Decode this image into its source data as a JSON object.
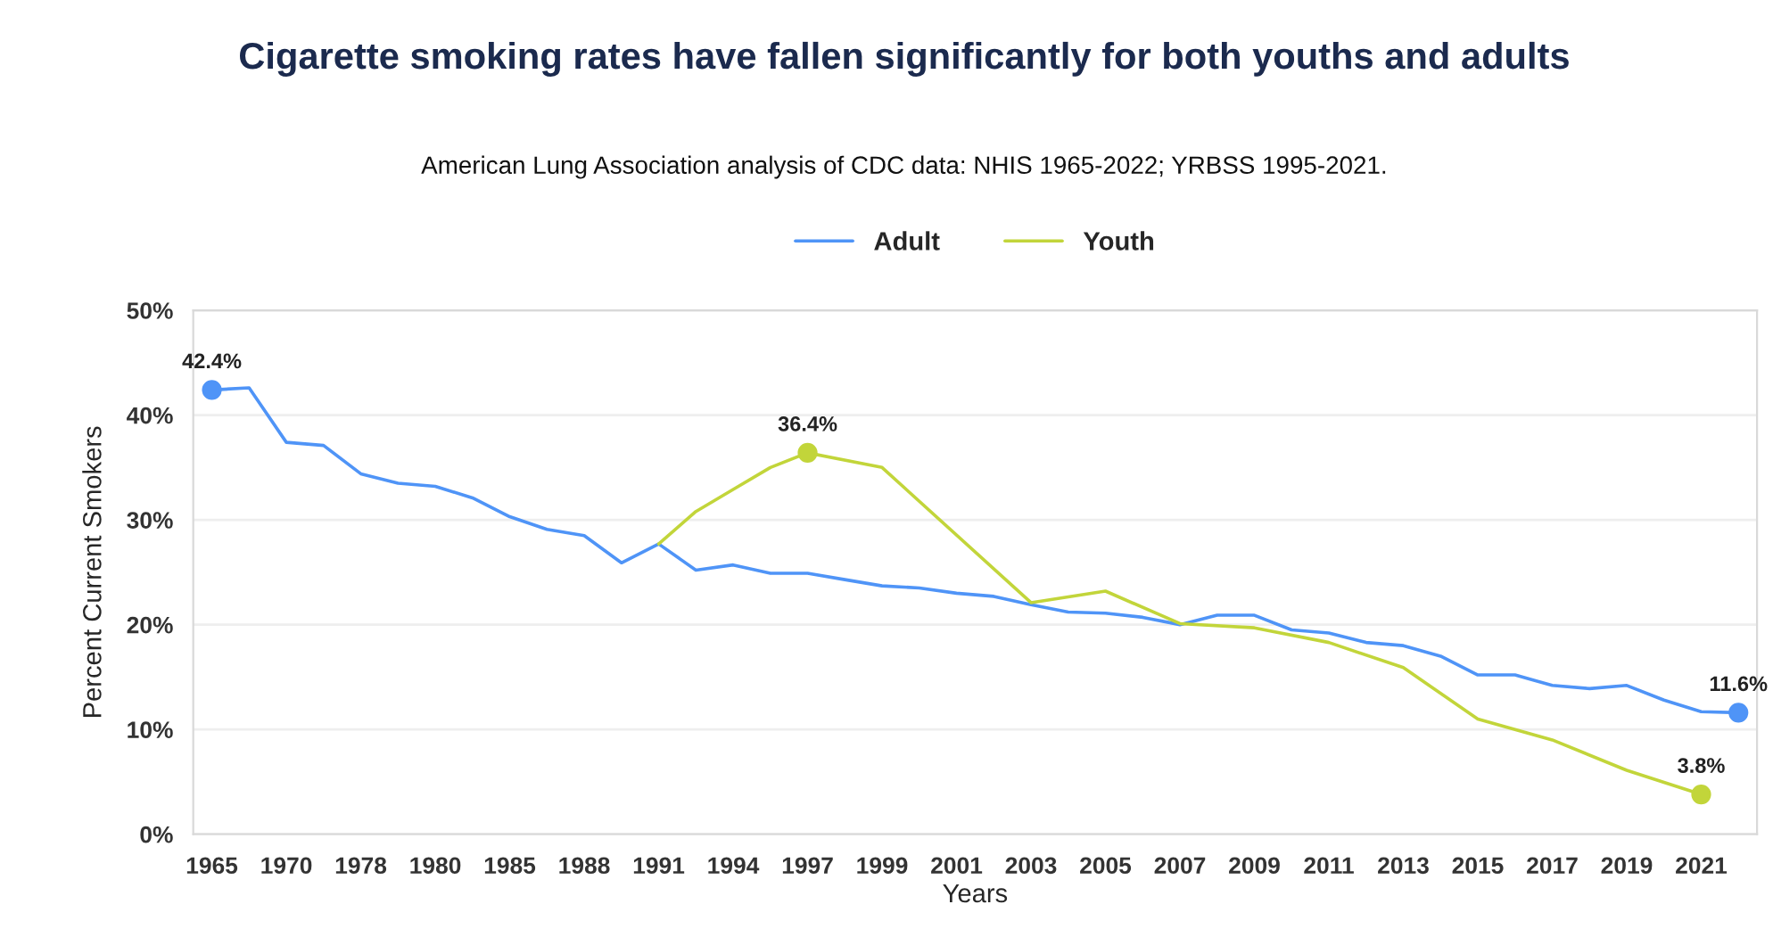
{
  "chart_data": {
    "type": "line",
    "title": "Cigarette smoking rates have fallen significantly for both youths and adults",
    "subtitle": "American Lung Association analysis of CDC data: NHIS 1965-2022; YRBSS 1995-2021.",
    "xlabel": "Years",
    "ylabel": "Percent Current Smokers",
    "categories": [
      "1965",
      null,
      "1970",
      null,
      "1978",
      null,
      "1980",
      null,
      "1985",
      null,
      "1988",
      null,
      "1991",
      null,
      "1994",
      null,
      "1997",
      null,
      "1999",
      null,
      "2001",
      null,
      "2003",
      null,
      "2005",
      null,
      "2007",
      null,
      "2009",
      null,
      "2011",
      null,
      "2013",
      null,
      "2015",
      null,
      "2017",
      null,
      "2019",
      null,
      "2021",
      null
    ],
    "ylim": [
      0,
      50
    ],
    "yticks": [
      {
        "value": 0,
        "label": "0%"
      },
      {
        "value": 10,
        "label": "10%"
      },
      {
        "value": 20,
        "label": "20%"
      },
      {
        "value": 30,
        "label": "30%"
      },
      {
        "value": 40,
        "label": "40%"
      },
      {
        "value": 50,
        "label": "50%"
      }
    ],
    "grid": "y",
    "legend": "top",
    "series": [
      {
        "name": "Adult",
        "color": "#4f94f7",
        "values": [
          42.4,
          42.6,
          37.4,
          37.1,
          34.4,
          33.5,
          33.2,
          32.1,
          30.3,
          29.1,
          28.5,
          25.9,
          27.7,
          25.2,
          25.7,
          24.9,
          24.9,
          24.3,
          23.7,
          23.5,
          23.0,
          22.7,
          21.9,
          21.2,
          21.1,
          20.7,
          20.0,
          20.9,
          20.9,
          19.5,
          19.2,
          18.3,
          18.0,
          17.0,
          15.2,
          15.2,
          14.2,
          13.9,
          14.2,
          12.8,
          11.7,
          11.6
        ],
        "value_labels": [
          "42.4%",
          null,
          null,
          null,
          null,
          null,
          null,
          null,
          null,
          null,
          null,
          null,
          null,
          null,
          null,
          null,
          null,
          null,
          null,
          null,
          null,
          null,
          null,
          null,
          null,
          null,
          null,
          null,
          null,
          null,
          null,
          null,
          null,
          null,
          null,
          null,
          null,
          null,
          null,
          null,
          null,
          "11.6%"
        ]
      },
      {
        "name": "Youth",
        "color": "#c2d53a",
        "values": [
          null,
          null,
          null,
          null,
          null,
          null,
          null,
          null,
          null,
          null,
          null,
          null,
          27.7,
          30.8,
          32.9,
          35.0,
          36.4,
          null,
          35.0,
          null,
          null,
          null,
          22.1,
          null,
          23.2,
          null,
          20.1,
          null,
          19.7,
          null,
          18.3,
          null,
          15.9,
          null,
          11.0,
          null,
          9.0,
          null,
          6.1,
          null,
          3.8,
          null
        ],
        "value_labels": [
          null,
          null,
          null,
          null,
          null,
          null,
          null,
          null,
          null,
          null,
          null,
          null,
          null,
          null,
          null,
          null,
          "36.4%",
          null,
          null,
          null,
          null,
          null,
          null,
          null,
          null,
          null,
          null,
          null,
          null,
          null,
          null,
          null,
          null,
          null,
          null,
          null,
          null,
          null,
          null,
          null,
          "3.8%",
          null
        ]
      }
    ]
  }
}
